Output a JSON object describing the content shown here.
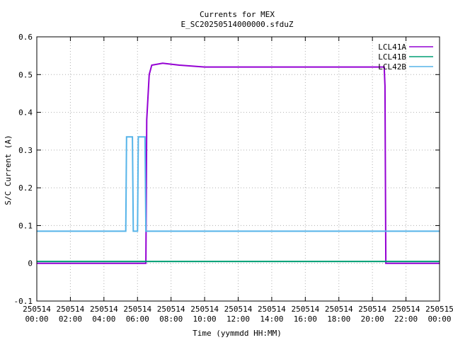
{
  "chart_data": {
    "type": "line",
    "title": "Currents for MEX",
    "subtitle": "E_SC20250514000000.sfduZ",
    "xlabel": "Time (yymmdd HH:MM)",
    "ylabel": "S/C Current (A)",
    "xlim_hours": [
      0,
      24
    ],
    "ylim": [
      -0.1,
      0.6
    ],
    "yticks": [
      "-0.1",
      "0",
      "0.1",
      "0.2",
      "0.3",
      "0.4",
      "0.5",
      "0.6"
    ],
    "xticks": [
      {
        "date": "250514",
        "time": "00:00"
      },
      {
        "date": "250514",
        "time": "02:00"
      },
      {
        "date": "250514",
        "time": "04:00"
      },
      {
        "date": "250514",
        "time": "06:00"
      },
      {
        "date": "250514",
        "time": "08:00"
      },
      {
        "date": "250514",
        "time": "10:00"
      },
      {
        "date": "250514",
        "time": "12:00"
      },
      {
        "date": "250514",
        "time": "14:00"
      },
      {
        "date": "250514",
        "time": "16:00"
      },
      {
        "date": "250514",
        "time": "18:00"
      },
      {
        "date": "250514",
        "time": "20:00"
      },
      {
        "date": "250514",
        "time": "22:00"
      },
      {
        "date": "250515",
        "time": "00:00"
      }
    ],
    "grid": true,
    "legend_position": "top-right",
    "series": [
      {
        "name": "LCL41A",
        "color": "#9400d3",
        "points": [
          [
            0,
            0
          ],
          [
            6.5,
            0
          ],
          [
            6.55,
            0.38
          ],
          [
            6.7,
            0.5
          ],
          [
            6.85,
            0.525
          ],
          [
            7.5,
            0.53
          ],
          [
            8.5,
            0.525
          ],
          [
            10,
            0.52
          ],
          [
            12,
            0.52
          ],
          [
            14,
            0.52
          ],
          [
            16,
            0.52
          ],
          [
            18,
            0.52
          ],
          [
            20,
            0.52
          ],
          [
            20.7,
            0.52
          ],
          [
            20.75,
            0.47
          ],
          [
            20.8,
            0
          ],
          [
            24,
            0
          ]
        ]
      },
      {
        "name": "LCL41B",
        "color": "#009e73",
        "points": [
          [
            0,
            0.005
          ],
          [
            24,
            0.005
          ]
        ]
      },
      {
        "name": "LCL42B",
        "color": "#56b4e9",
        "points": [
          [
            0,
            0.085
          ],
          [
            5.3,
            0.085
          ],
          [
            5.35,
            0.335
          ],
          [
            5.7,
            0.335
          ],
          [
            5.75,
            0.085
          ],
          [
            6.0,
            0.085
          ],
          [
            6.05,
            0.335
          ],
          [
            6.45,
            0.335
          ],
          [
            6.5,
            0.085
          ],
          [
            24,
            0.085
          ]
        ]
      }
    ]
  }
}
